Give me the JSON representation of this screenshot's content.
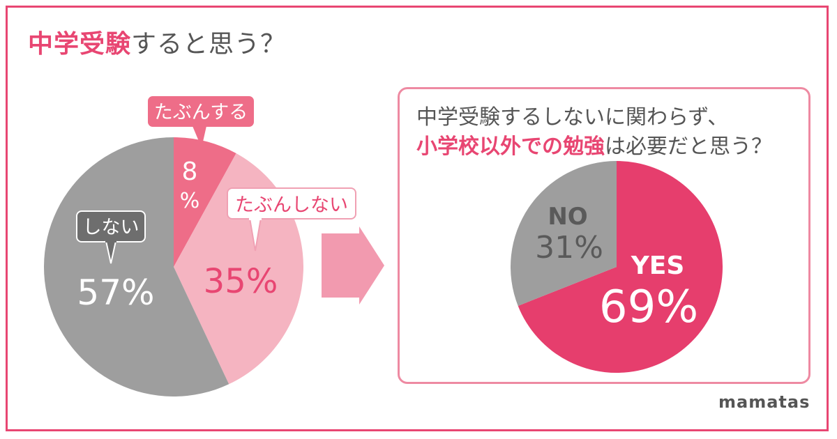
{
  "header": {
    "title_accent": "中学受験",
    "title_rest": "すると思う？"
  },
  "panel": {
    "question_line1": "中学受験するしないに関わらず、",
    "question_line2_accent": "小学校以外での勉強",
    "question_line2_rest": "は必要だと思う？"
  },
  "brand": {
    "logo": "mamatas"
  },
  "chart_data": [
    {
      "type": "pie",
      "title": "中学受験すると思う？",
      "slices": [
        {
          "label": "たぶんする",
          "value": 8,
          "display": "8%",
          "digit": "8",
          "percent_sign": "%",
          "color": "#ee6d88"
        },
        {
          "label": "たぶんしない",
          "value": 35,
          "display": "35%",
          "color": "#f5b4c1"
        },
        {
          "label": "しない",
          "value": 57,
          "display": "57%",
          "color": "#9e9e9e"
        }
      ]
    },
    {
      "type": "pie",
      "title": "中学受験するしないに関わらず、小学校以外での勉強は必要だと思う？",
      "slices": [
        {
          "label": "YES",
          "value": 69,
          "display": "69%",
          "color": "#e63e6d"
        },
        {
          "label": "NO",
          "value": 31,
          "display": "31%",
          "color": "#9e9e9e"
        }
      ]
    }
  ]
}
